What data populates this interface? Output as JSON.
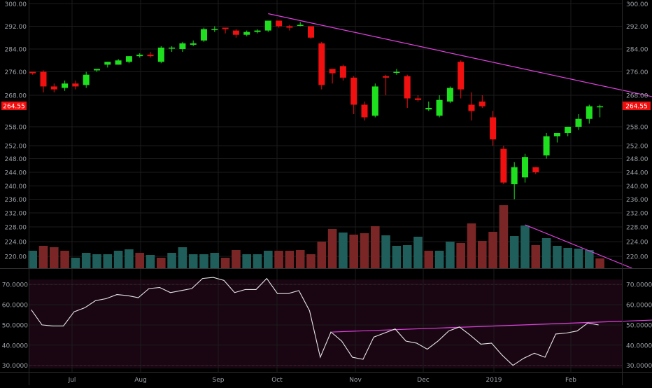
{
  "colors": {
    "background": "#000000",
    "grid": "#1c1c1c",
    "up": "#1ee01e",
    "down": "#f01010",
    "volume_up": "#1f5e5a",
    "volume_down": "#7a2626",
    "trendline": "#e040e0",
    "rsi_line": "#e6e6e6",
    "rsi_band": "#1a0612",
    "price_badge": "#f20d0d",
    "axis_text": "#9aa0a6"
  },
  "price_axis": {
    "ticks": [
      "300.00",
      "292.00",
      "284.00",
      "276.00",
      "268.00",
      "258.00",
      "252.00",
      "248.00",
      "244.00",
      "240.00",
      "236.00",
      "232.00",
      "228.00",
      "224.00",
      "220.00"
    ]
  },
  "last_price_label": "264.55",
  "rsi_axis": {
    "ticks": [
      "70.0000",
      "60.0000",
      "50.0000",
      "40.0000",
      "30.0000"
    ]
  },
  "date_labels": [
    "Jul",
    "Aug",
    "Sep",
    "Oct",
    "Nov",
    "Dec",
    "2019",
    "Feb"
  ],
  "chart_data": [
    {
      "type": "candlestick",
      "title": "",
      "price_ticks": [
        300,
        292,
        284,
        276,
        268,
        258,
        252,
        248,
        244,
        240,
        236,
        232,
        228,
        224,
        220
      ],
      "candles": [
        {
          "o": 276,
          "h": 276,
          "l": 275,
          "c": 275.5
        },
        {
          "o": 276,
          "h": 276.5,
          "l": 269,
          "c": 271
        },
        {
          "o": 271,
          "h": 272,
          "l": 269,
          "c": 270
        },
        {
          "o": 270.5,
          "h": 273,
          "l": 269.5,
          "c": 272
        },
        {
          "o": 272,
          "h": 273,
          "l": 270,
          "c": 271
        },
        {
          "o": 271.5,
          "h": 276,
          "l": 270.5,
          "c": 275
        },
        {
          "o": 276.5,
          "h": 277,
          "l": 276,
          "c": 277
        },
        {
          "o": 278.5,
          "h": 279.5,
          "l": 277.5,
          "c": 279.5
        },
        {
          "o": 278.5,
          "h": 280.5,
          "l": 278.5,
          "c": 280
        },
        {
          "o": 279.5,
          "h": 281.5,
          "l": 279,
          "c": 281.5
        },
        {
          "o": 281.5,
          "h": 282.5,
          "l": 281,
          "c": 282
        },
        {
          "o": 282,
          "h": 283,
          "l": 281,
          "c": 281.5
        },
        {
          "o": 279.5,
          "h": 285,
          "l": 279,
          "c": 284.5
        },
        {
          "o": 284.5,
          "h": 285,
          "l": 283,
          "c": 284.5
        },
        {
          "o": 284,
          "h": 286.5,
          "l": 283,
          "c": 286
        },
        {
          "o": 285.5,
          "h": 287,
          "l": 285,
          "c": 286
        },
        {
          "o": 287,
          "h": 291.5,
          "l": 286.5,
          "c": 291
        },
        {
          "o": 291,
          "h": 292,
          "l": 290,
          "c": 291
        },
        {
          "o": 291.5,
          "h": 291.5,
          "l": 289.5,
          "c": 291
        },
        {
          "o": 290.5,
          "h": 291,
          "l": 288,
          "c": 289
        },
        {
          "o": 289,
          "h": 290.5,
          "l": 288.5,
          "c": 290
        },
        {
          "o": 290,
          "h": 291,
          "l": 289.5,
          "c": 290.5
        },
        {
          "o": 290.5,
          "h": 294,
          "l": 290,
          "c": 294
        },
        {
          "o": 294,
          "h": 294,
          "l": 291.5,
          "c": 292
        },
        {
          "o": 292,
          "h": 292.5,
          "l": 290.5,
          "c": 291.5
        },
        {
          "o": 292.5,
          "h": 293.5,
          "l": 292,
          "c": 292.5
        },
        {
          "o": 292,
          "h": 292,
          "l": 287.5,
          "c": 288
        },
        {
          "o": 286,
          "h": 286.5,
          "l": 270,
          "c": 271.5
        },
        {
          "o": 277,
          "h": 277,
          "l": 272,
          "c": 275.5
        },
        {
          "o": 278,
          "h": 278.5,
          "l": 273,
          "c": 274
        },
        {
          "o": 274,
          "h": 274.5,
          "l": 262,
          "c": 265
        },
        {
          "o": 265,
          "h": 266,
          "l": 260,
          "c": 261
        },
        {
          "o": 261.5,
          "h": 272,
          "l": 261,
          "c": 271
        },
        {
          "o": 274.5,
          "h": 275,
          "l": 268,
          "c": 274
        },
        {
          "o": 276,
          "h": 277,
          "l": 275,
          "c": 276
        },
        {
          "o": 274.5,
          "h": 275,
          "l": 264,
          "c": 267
        },
        {
          "o": 267,
          "h": 268,
          "l": 266,
          "c": 266.5
        },
        {
          "o": 263.5,
          "h": 266,
          "l": 263,
          "c": 264
        },
        {
          "o": 261.5,
          "h": 268,
          "l": 261,
          "c": 266.5
        },
        {
          "o": 266,
          "h": 271,
          "l": 265.5,
          "c": 270.5
        },
        {
          "o": 279.5,
          "h": 280,
          "l": 267,
          "c": 270
        },
        {
          "o": 265,
          "h": 269,
          "l": 260,
          "c": 263
        },
        {
          "o": 266,
          "h": 268,
          "l": 264,
          "c": 264.5
        },
        {
          "o": 261,
          "h": 263,
          "l": 252,
          "c": 254
        },
        {
          "o": 251,
          "h": 252,
          "l": 240.5,
          "c": 241
        },
        {
          "o": 240.5,
          "h": 247,
          "l": 236,
          "c": 245.5
        },
        {
          "o": 242.5,
          "h": 249.5,
          "l": 241,
          "c": 248.5
        },
        {
          "o": 245.5,
          "h": 245.5,
          "l": 243.5,
          "c": 244
        },
        {
          "o": 249,
          "h": 256,
          "l": 248,
          "c": 255
        },
        {
          "o": 255,
          "h": 256,
          "l": 253,
          "c": 256
        },
        {
          "o": 256,
          "h": 258,
          "l": 255,
          "c": 258
        },
        {
          "o": 258,
          "h": 262,
          "l": 257,
          "c": 260.5
        },
        {
          "o": 260.5,
          "h": 265,
          "l": 259,
          "c": 264.5
        },
        {
          "o": 264.5,
          "h": 265,
          "l": 261,
          "c": 264.5
        }
      ],
      "volume": [
        {
          "v": 25,
          "dir": "up"
        },
        {
          "v": 32,
          "dir": "down"
        },
        {
          "v": 30,
          "dir": "down"
        },
        {
          "v": 25,
          "dir": "down"
        },
        {
          "v": 15,
          "dir": "up"
        },
        {
          "v": 22,
          "dir": "up"
        },
        {
          "v": 20,
          "dir": "up"
        },
        {
          "v": 20,
          "dir": "up"
        },
        {
          "v": 25,
          "dir": "up"
        },
        {
          "v": 27,
          "dir": "up"
        },
        {
          "v": 22,
          "dir": "down"
        },
        {
          "v": 19,
          "dir": "up"
        },
        {
          "v": 15,
          "dir": "down"
        },
        {
          "v": 22,
          "dir": "up"
        },
        {
          "v": 30,
          "dir": "up"
        },
        {
          "v": 20,
          "dir": "up"
        },
        {
          "v": 20,
          "dir": "up"
        },
        {
          "v": 22,
          "dir": "up"
        },
        {
          "v": 15,
          "dir": "down"
        },
        {
          "v": 26,
          "dir": "down"
        },
        {
          "v": 20,
          "dir": "up"
        },
        {
          "v": 20,
          "dir": "up"
        },
        {
          "v": 25,
          "dir": "up"
        },
        {
          "v": 25,
          "dir": "down"
        },
        {
          "v": 25,
          "dir": "down"
        },
        {
          "v": 26,
          "dir": "down"
        },
        {
          "v": 20,
          "dir": "down"
        },
        {
          "v": 38,
          "dir": "down"
        },
        {
          "v": 56,
          "dir": "down"
        },
        {
          "v": 51,
          "dir": "up"
        },
        {
          "v": 48,
          "dir": "down"
        },
        {
          "v": 50,
          "dir": "down"
        },
        {
          "v": 60,
          "dir": "down"
        },
        {
          "v": 47,
          "dir": "up"
        },
        {
          "v": 32,
          "dir": "up"
        },
        {
          "v": 33,
          "dir": "up"
        },
        {
          "v": 45,
          "dir": "up"
        },
        {
          "v": 25,
          "dir": "down"
        },
        {
          "v": 25,
          "dir": "up"
        },
        {
          "v": 38,
          "dir": "up"
        },
        {
          "v": 36,
          "dir": "down"
        },
        {
          "v": 64,
          "dir": "down"
        },
        {
          "v": 39,
          "dir": "down"
        },
        {
          "v": 52,
          "dir": "down"
        },
        {
          "v": 90,
          "dir": "down"
        },
        {
          "v": 46,
          "dir": "up"
        },
        {
          "v": 61,
          "dir": "up"
        },
        {
          "v": 33,
          "dir": "down"
        },
        {
          "v": 43,
          "dir": "up"
        },
        {
          "v": 32,
          "dir": "up"
        },
        {
          "v": 29,
          "dir": "up"
        },
        {
          "v": 28,
          "dir": "up"
        },
        {
          "v": 26,
          "dir": "up"
        },
        {
          "v": 14,
          "dir": "down"
        }
      ],
      "trendlines": [
        {
          "from": {
            "i": 22,
            "p": 296.5
          },
          "to": {
            "i": 60,
            "p": 266
          }
        }
      ],
      "volume_trendlines": [
        {
          "from": {
            "i": 46,
            "v": 62
          },
          "to": {
            "i": 56,
            "v": 0
          }
        }
      ]
    },
    {
      "type": "line",
      "title": "",
      "ylim": [
        28.5,
        72.5
      ],
      "ticks": [
        70,
        60,
        50,
        40,
        30
      ],
      "values": [
        57.5,
        50,
        49.5,
        49.5,
        56.5,
        58.5,
        62,
        63,
        65,
        64.5,
        63.5,
        68,
        68.5,
        66,
        67,
        68,
        73,
        73.5,
        72,
        66,
        67.5,
        67.5,
        73,
        65.5,
        65.5,
        67,
        57,
        34,
        46.5,
        42,
        34,
        33,
        44,
        46,
        48,
        42,
        41,
        38,
        42,
        47,
        49,
        45,
        40.5,
        41,
        35,
        30,
        33.5,
        36,
        34,
        45.5,
        46,
        47,
        51,
        50
      ],
      "trendline": {
        "from": {
          "i": 28,
          "v": 46.5
        },
        "to": {
          "i": 61,
          "v": 53
        }
      }
    }
  ]
}
